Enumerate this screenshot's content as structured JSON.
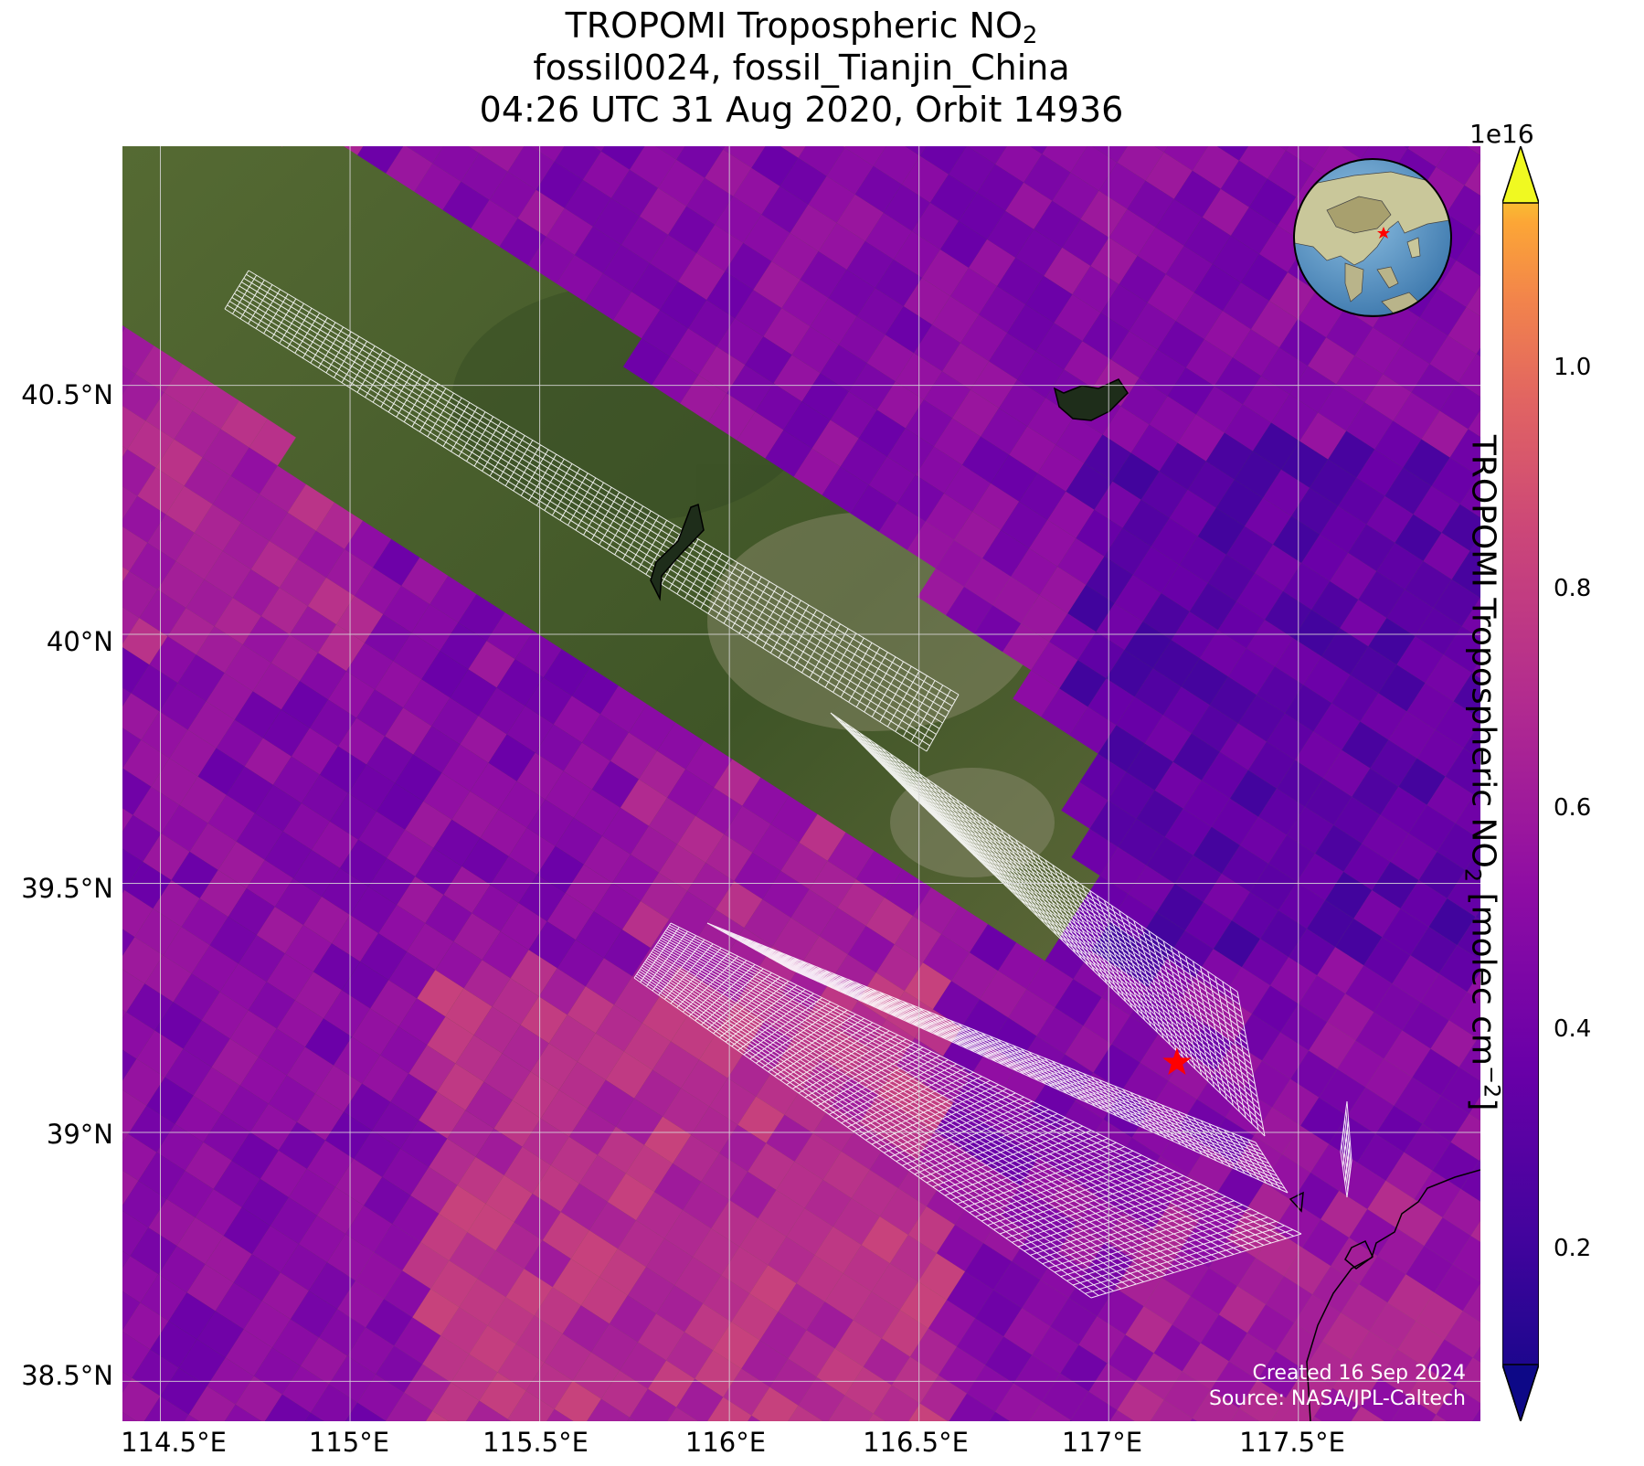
{
  "title": {
    "line1_prefix": "TROPOMI Tropospheric NO",
    "line1_sub": "2",
    "line2": "fossil0024, fossil_Tianjin_China",
    "line3": "04:26 UTC 31 Aug 2020, Orbit 14936"
  },
  "axes": {
    "y_ticks": [
      "40.5°N",
      "40°N",
      "39.5°N",
      "39°N",
      "38.5°N"
    ],
    "x_ticks": [
      "114.5°E",
      "115°E",
      "115.5°E",
      "116°E",
      "116.5°E",
      "117°E",
      "117.5°E"
    ]
  },
  "colorbar": {
    "exponent": "1e16",
    "ticks": [
      "1.0",
      "0.8",
      "0.6",
      "0.4",
      "0.2"
    ],
    "label_prefix": "TROPOMI Tropospheric NO",
    "label_sub": "2",
    "label_mid": " [molec cm",
    "label_sup": "−2",
    "label_end": "]",
    "colormap": "plasma"
  },
  "credit": {
    "created": "Created 16 Sep 2024",
    "source": "Source: NASA/JPL-Caltech"
  },
  "colors": {
    "gridline": "#d8d8d8",
    "target_marker": "#ff0000",
    "swath_grid": "#ffffff",
    "low_value": "#0d0887",
    "high_value": "#f0f921"
  },
  "target": {
    "name": "fossil_Tianjin_China",
    "lon": 117.18,
    "lat": 39.14
  },
  "map_extent": {
    "lon": [
      114.4,
      117.98
    ],
    "lat": [
      38.42,
      40.98
    ]
  }
}
